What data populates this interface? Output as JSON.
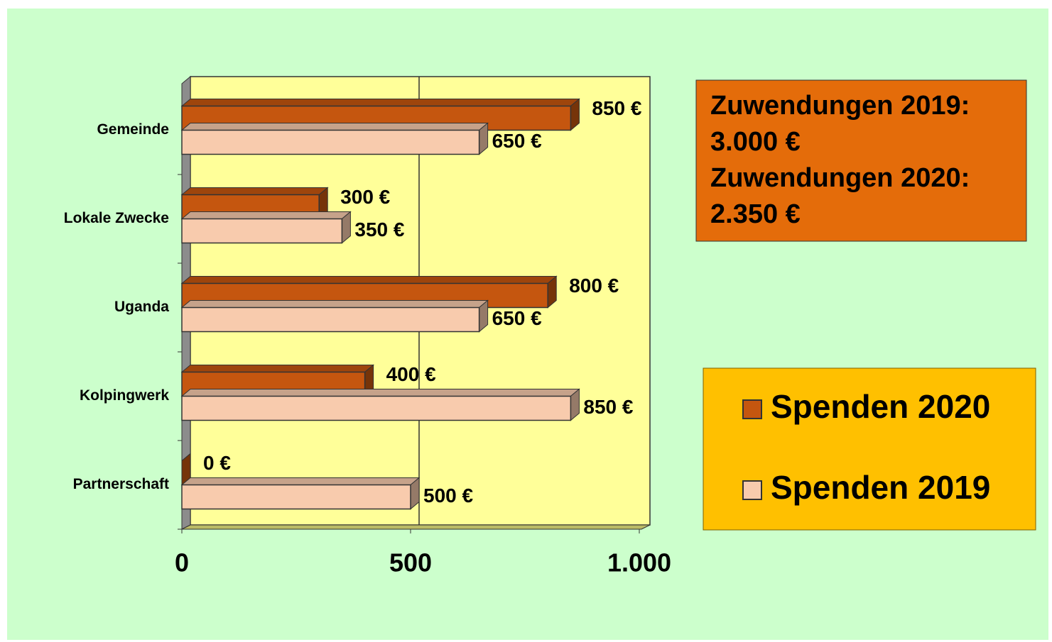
{
  "chart_data": {
    "type": "bar3d",
    "categories": [
      "Gemeinde",
      "Lokale Zwecke",
      "Uganda",
      "Kolpingwerk",
      "Partnerschaft"
    ],
    "series": [
      {
        "name": "Spenden 2020",
        "color": "#c5560f",
        "values": [
          850,
          300,
          800,
          400,
          0
        ],
        "value_labels": [
          "850 €",
          "300 €",
          "800 €",
          "400 €",
          "0 €"
        ]
      },
      {
        "name": "Spenden 2019",
        "color": "#f8cbad",
        "values": [
          650,
          350,
          650,
          850,
          500
        ],
        "value_labels": [
          "650 €",
          "350 €",
          "650 €",
          "850 €",
          "500 €"
        ]
      }
    ],
    "xlim": [
      0,
      1000
    ],
    "xticks": [
      0,
      500,
      {
        "value": 1000,
        "label": "1.000"
      }
    ],
    "grid": true,
    "legend": "right",
    "annotations": [
      "Zuwendungen 2019:",
      "3.000 €",
      "Zuwendungen 2020:",
      "2.350 €"
    ]
  }
}
